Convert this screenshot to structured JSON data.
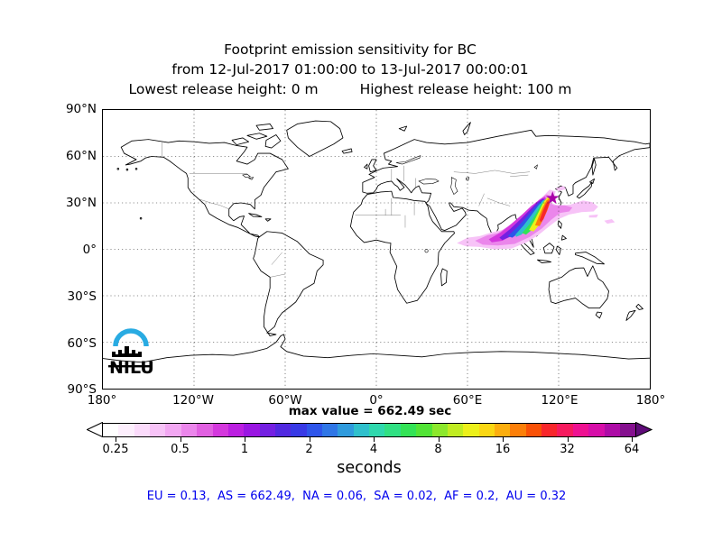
{
  "title": {
    "line1": "Footprint emission sensitivity for BC",
    "line2": "from 12-Jul-2017 01:00:00 to 13-Jul-2017 00:00:01",
    "line3_left": "Lowest release height: 0 m",
    "line3_right": "Highest release height: 100 m"
  },
  "map": {
    "lat_labels": [
      "90°N",
      "60°N",
      "30°N",
      "0°",
      "30°S",
      "60°S",
      "90°S"
    ],
    "lon_labels": [
      "180°",
      "120°W",
      "60°W",
      "0°",
      "60°E",
      "120°E",
      "180°"
    ],
    "logo": {
      "text": "NILU",
      "arc_color": "#29abe2",
      "ink_color": "#000000"
    },
    "marker": {
      "shape": "star",
      "color": "#a800a8"
    }
  },
  "colorbar": {
    "max_value_label": "max value = 662.49 sec",
    "unit_label": "seconds",
    "tick_labels": [
      "0.25",
      "0.5",
      "1",
      "2",
      "4",
      "8",
      "16",
      "32",
      "64"
    ],
    "colors": [
      "#ffffff",
      "#fdeffd",
      "#fbdbfb",
      "#f7c3f7",
      "#f2a7f2",
      "#eb86eb",
      "#e160e1",
      "#d438dd",
      "#bb1fe0",
      "#9a16e2",
      "#7420e2",
      "#5129e0",
      "#3839e6",
      "#2e55ea",
      "#2f76e6",
      "#2f9bdd",
      "#2fc0cc",
      "#2fd8ad",
      "#30e083",
      "#33e356",
      "#52e436",
      "#8ce82c",
      "#c0ec22",
      "#ecf01a",
      "#fad713",
      "#fcae0e",
      "#fc7f09",
      "#f95107",
      "#f8262b",
      "#f61a5e",
      "#ee1191",
      "#d60ea8",
      "#ad0ca6",
      "#85108f"
    ],
    "left_arrow_color": "#ffffff",
    "right_arrow_color": "#5f0b79"
  },
  "footer": {
    "region_stats": "EU = 0.13,  AS = 662.49,  NA = 0.06,  SA = 0.02,  AF = 0.2,  AU = 0.32",
    "color": "#0000ee"
  },
  "chart_data": {
    "type": "heatmap",
    "title": "Footprint emission sensitivity for BC",
    "period_from": "12-Jul-2017 01:00:00",
    "period_to": "13-Jul-2017 00:00:01",
    "lowest_release_height_m": 0,
    "highest_release_height_m": 100,
    "units": "seconds",
    "max_value_sec": 662.49,
    "colorbar_ticks_sec": [
      0.25,
      0.5,
      1,
      2,
      4,
      8,
      16,
      32,
      64
    ],
    "scale": "logarithmic (base 2)",
    "map_extent": {
      "lon": [
        -180,
        180
      ],
      "lat": [
        -90,
        90
      ]
    },
    "grid_spacing_deg": {
      "lon": 60,
      "lat": 30
    },
    "region_totals_sec": {
      "EU": 0.13,
      "AS": 662.49,
      "NA": 0.06,
      "SA": 0.02,
      "AF": 0.2,
      "AU": 0.32
    },
    "plume_location": "Southeast Asia / South China Sea, extending west over Bay of Bengal and Arabian Sea",
    "release_marker_approx": {
      "lon_deg_east": 116,
      "lat_deg_north": 33
    }
  }
}
